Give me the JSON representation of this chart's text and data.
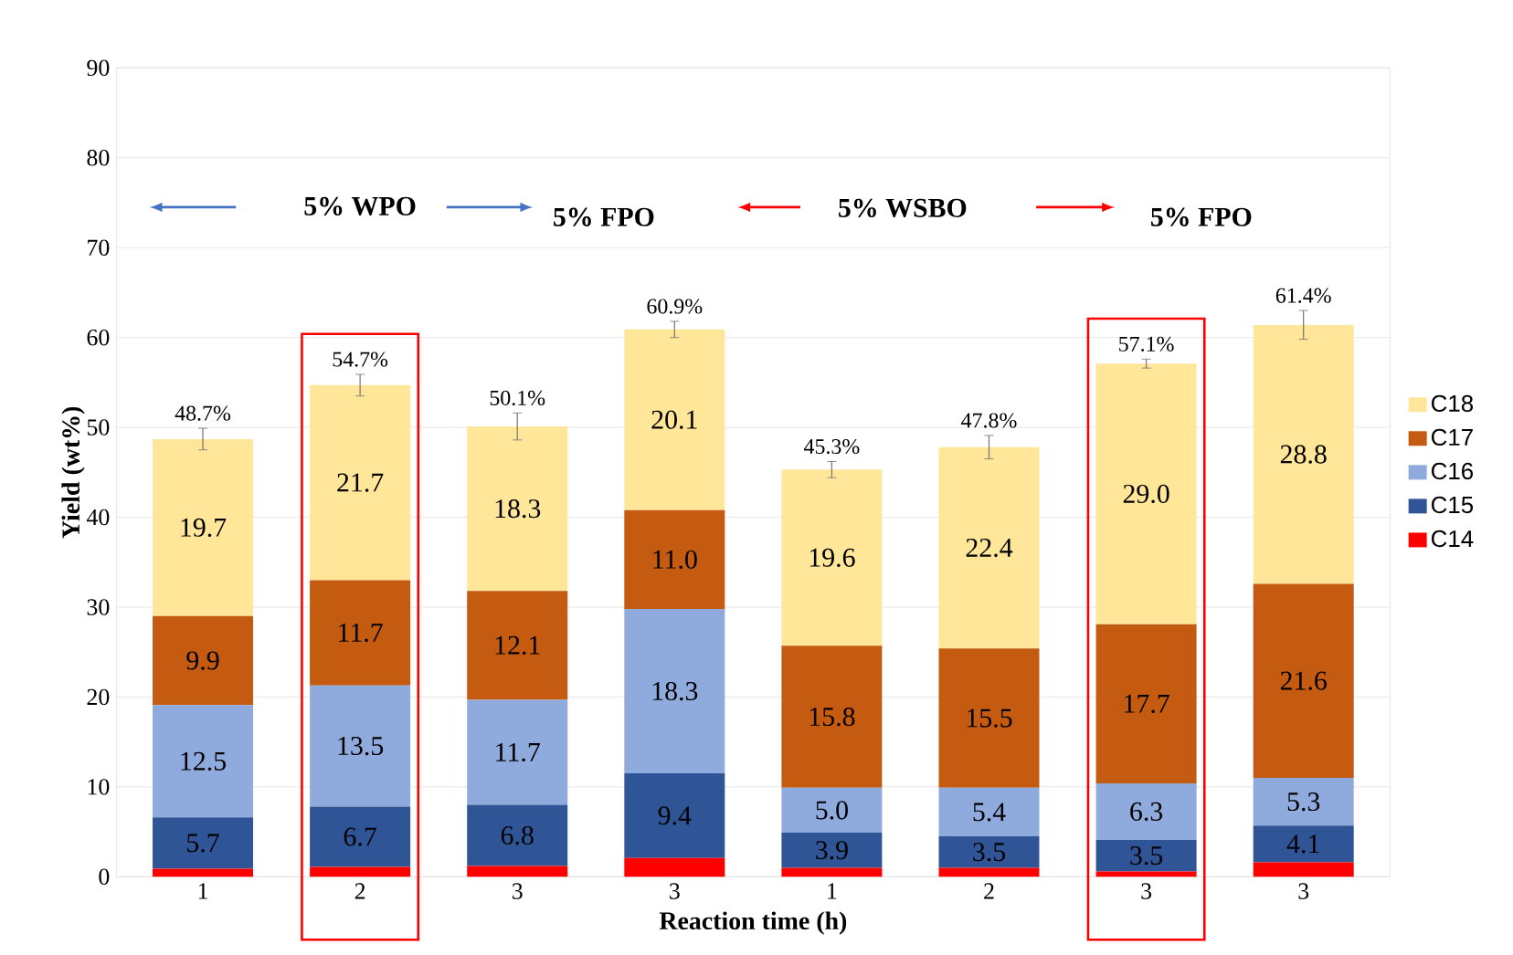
{
  "chart_data": {
    "type": "bar",
    "stacked": true,
    "xlabel": "Reaction time (h)",
    "ylabel": "Yield (wt%)",
    "categories": [
      "1",
      "2",
      "3",
      "3",
      "1",
      "2",
      "3",
      "3"
    ],
    "series": [
      {
        "name": "C14",
        "color": "#ff0000",
        "values": [
          0.9,
          1.1,
          1.2,
          2.1,
          1.0,
          1.0,
          0.6,
          1.6
        ]
      },
      {
        "name": "C15",
        "color": "#2f5597",
        "values": [
          5.7,
          6.7,
          6.8,
          9.4,
          3.9,
          3.5,
          3.5,
          4.1
        ],
        "value_labels": [
          "5.7",
          "6.7",
          "6.8",
          "9.4",
          "3.9",
          "3.5",
          "3.5",
          "4.1"
        ]
      },
      {
        "name": "C16",
        "color": "#8faadc",
        "values": [
          12.5,
          13.5,
          11.7,
          18.3,
          5.0,
          5.4,
          6.3,
          5.3
        ],
        "value_labels": [
          "12.5",
          "13.5",
          "11.7",
          "18.3",
          "5.0",
          "5.4",
          "6.3",
          "5.3"
        ]
      },
      {
        "name": "C17",
        "color": "#c55a11",
        "values": [
          9.9,
          11.7,
          12.1,
          11.0,
          15.8,
          15.5,
          17.7,
          21.6
        ],
        "value_labels": [
          "9.9",
          "11.7",
          "12.1",
          "11.0",
          "15.8",
          "15.5",
          "17.7",
          "21.6"
        ]
      },
      {
        "name": "C18",
        "color": "#ffe699",
        "values": [
          19.7,
          21.7,
          18.3,
          20.1,
          19.6,
          22.4,
          29.0,
          28.8
        ],
        "value_labels": [
          "19.7",
          "21.7",
          "18.3",
          "20.1",
          "19.6",
          "22.4",
          "29.0",
          "28.8"
        ],
        "errors": [
          1.2,
          1.2,
          1.5,
          0.9,
          0.9,
          1.3,
          0.5,
          1.6
        ]
      }
    ],
    "totals": [
      "48.7%",
      "54.7%",
      "50.1%",
      "60.9%",
      "45.3%",
      "47.8%",
      "57.1%",
      "61.4%"
    ],
    "annotations": [
      "5% WPO",
      "5% FPO",
      "5% WSBO",
      "5% FPO"
    ],
    "ylim": [
      0,
      90
    ],
    "yticks": [
      0,
      10,
      20,
      30,
      40,
      50,
      60,
      70,
      80,
      90
    ],
    "grid": "y",
    "legend": "right"
  }
}
